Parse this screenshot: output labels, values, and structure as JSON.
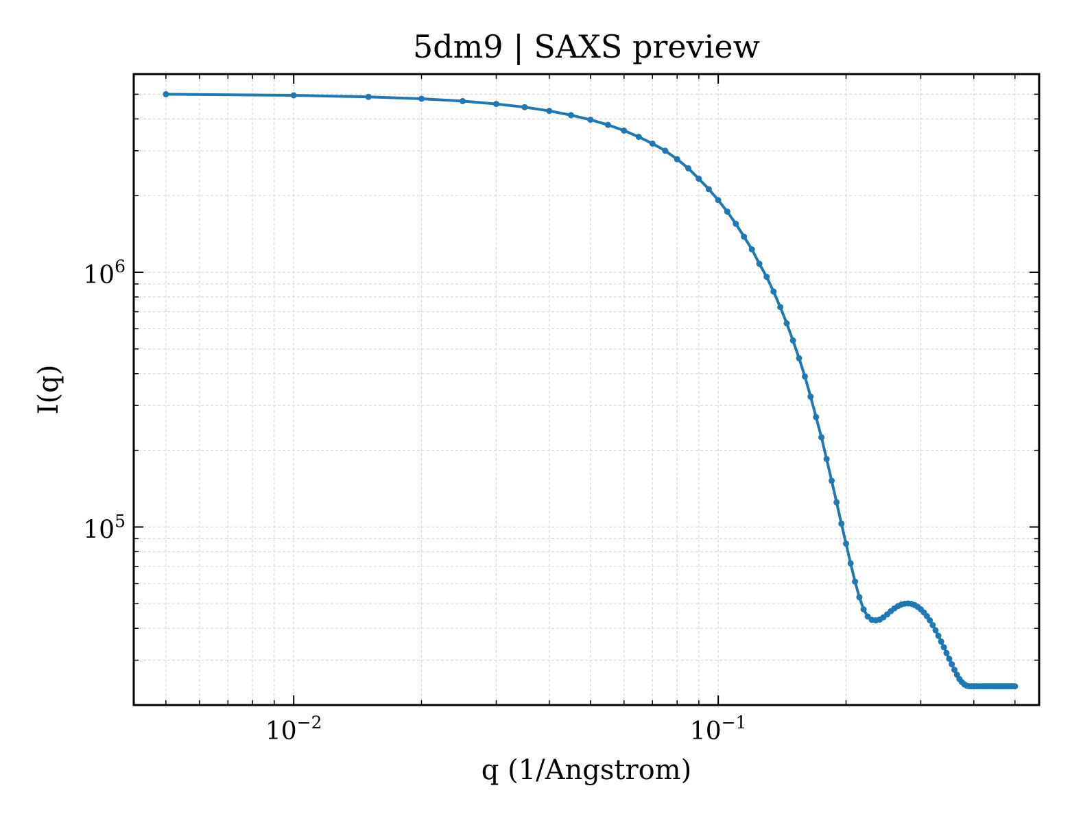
{
  "chart_data": {
    "type": "line",
    "title": "5dm9 | SAXS preview",
    "xlabel": "q (1/Angstrom)",
    "ylabel": "I(q)",
    "xscale": "log",
    "yscale": "log",
    "xlim": [
      0.0042,
      0.57
    ],
    "ylim": [
      20000,
      6000000
    ],
    "grid": true,
    "grid_style": "dashed, major and minor",
    "marker": "circle",
    "x_ticks": [
      {
        "value": 0.01,
        "base": "10",
        "exp": "−2"
      },
      {
        "value": 0.1,
        "base": "10",
        "exp": "−1"
      }
    ],
    "y_ticks": [
      {
        "value": 100000,
        "base": "10",
        "exp": "5"
      },
      {
        "value": 1000000,
        "base": "10",
        "exp": "6"
      }
    ],
    "series": [
      {
        "color": "#1f77b4",
        "x": [
          0.005,
          0.01,
          0.015,
          0.02,
          0.025,
          0.03,
          0.035,
          0.04,
          0.045,
          0.05,
          0.055,
          0.06,
          0.065,
          0.07,
          0.075,
          0.08,
          0.085,
          0.09,
          0.095,
          0.1,
          0.105,
          0.11,
          0.115,
          0.12,
          0.125,
          0.13,
          0.135,
          0.14,
          0.145,
          0.15,
          0.155,
          0.16,
          0.165,
          0.17,
          0.175,
          0.18,
          0.185,
          0.19,
          0.195,
          0.2,
          0.205,
          0.21,
          0.215,
          0.22,
          0.225,
          0.23,
          0.235,
          0.24,
          0.245,
          0.25,
          0.255,
          0.26,
          0.265,
          0.27,
          0.275,
          0.28,
          0.285,
          0.29,
          0.295,
          0.3,
          0.305,
          0.31,
          0.315,
          0.32,
          0.325,
          0.33,
          0.335,
          0.34,
          0.345,
          0.35,
          0.355,
          0.36,
          0.365,
          0.37,
          0.375,
          0.38,
          0.385,
          0.39,
          0.395,
          0.4,
          0.405,
          0.41,
          0.415,
          0.42,
          0.425,
          0.43,
          0.435,
          0.44,
          0.445,
          0.45,
          0.455,
          0.46,
          0.465,
          0.47,
          0.475,
          0.48,
          0.485,
          0.49,
          0.495,
          0.5
        ],
        "y": [
          5000000,
          4950000,
          4880000,
          4800000,
          4700000,
          4580000,
          4450000,
          4300000,
          4140000,
          3970000,
          3790000,
          3600000,
          3400000,
          3200000,
          3000000,
          2780000,
          2560000,
          2330000,
          2120000,
          1920000,
          1730000,
          1550000,
          1380000,
          1230000,
          1080000,
          960000,
          840000,
          730000,
          630000,
          540000,
          460000,
          390000,
          325000,
          270000,
          225000,
          185000,
          152000,
          125000,
          103000,
          86000,
          72000,
          61000,
          53000,
          47500,
          44500,
          43200,
          43000,
          43300,
          44200,
          45400,
          46700,
          47900,
          48900,
          49600,
          50000,
          50100,
          49900,
          49400,
          48600,
          47500,
          46200,
          44700,
          43000,
          41200,
          39300,
          37400,
          35500,
          33700,
          32000,
          30400,
          28900,
          27500,
          26300,
          25300,
          24600,
          24100,
          23800,
          23700,
          23700,
          23700,
          23700,
          23700,
          23700,
          23700,
          23700,
          23700,
          23700,
          23700,
          23700,
          23700,
          23700,
          23700,
          23700,
          23700,
          23700,
          23700,
          23700,
          23700,
          23700,
          23700
        ]
      }
    ]
  }
}
